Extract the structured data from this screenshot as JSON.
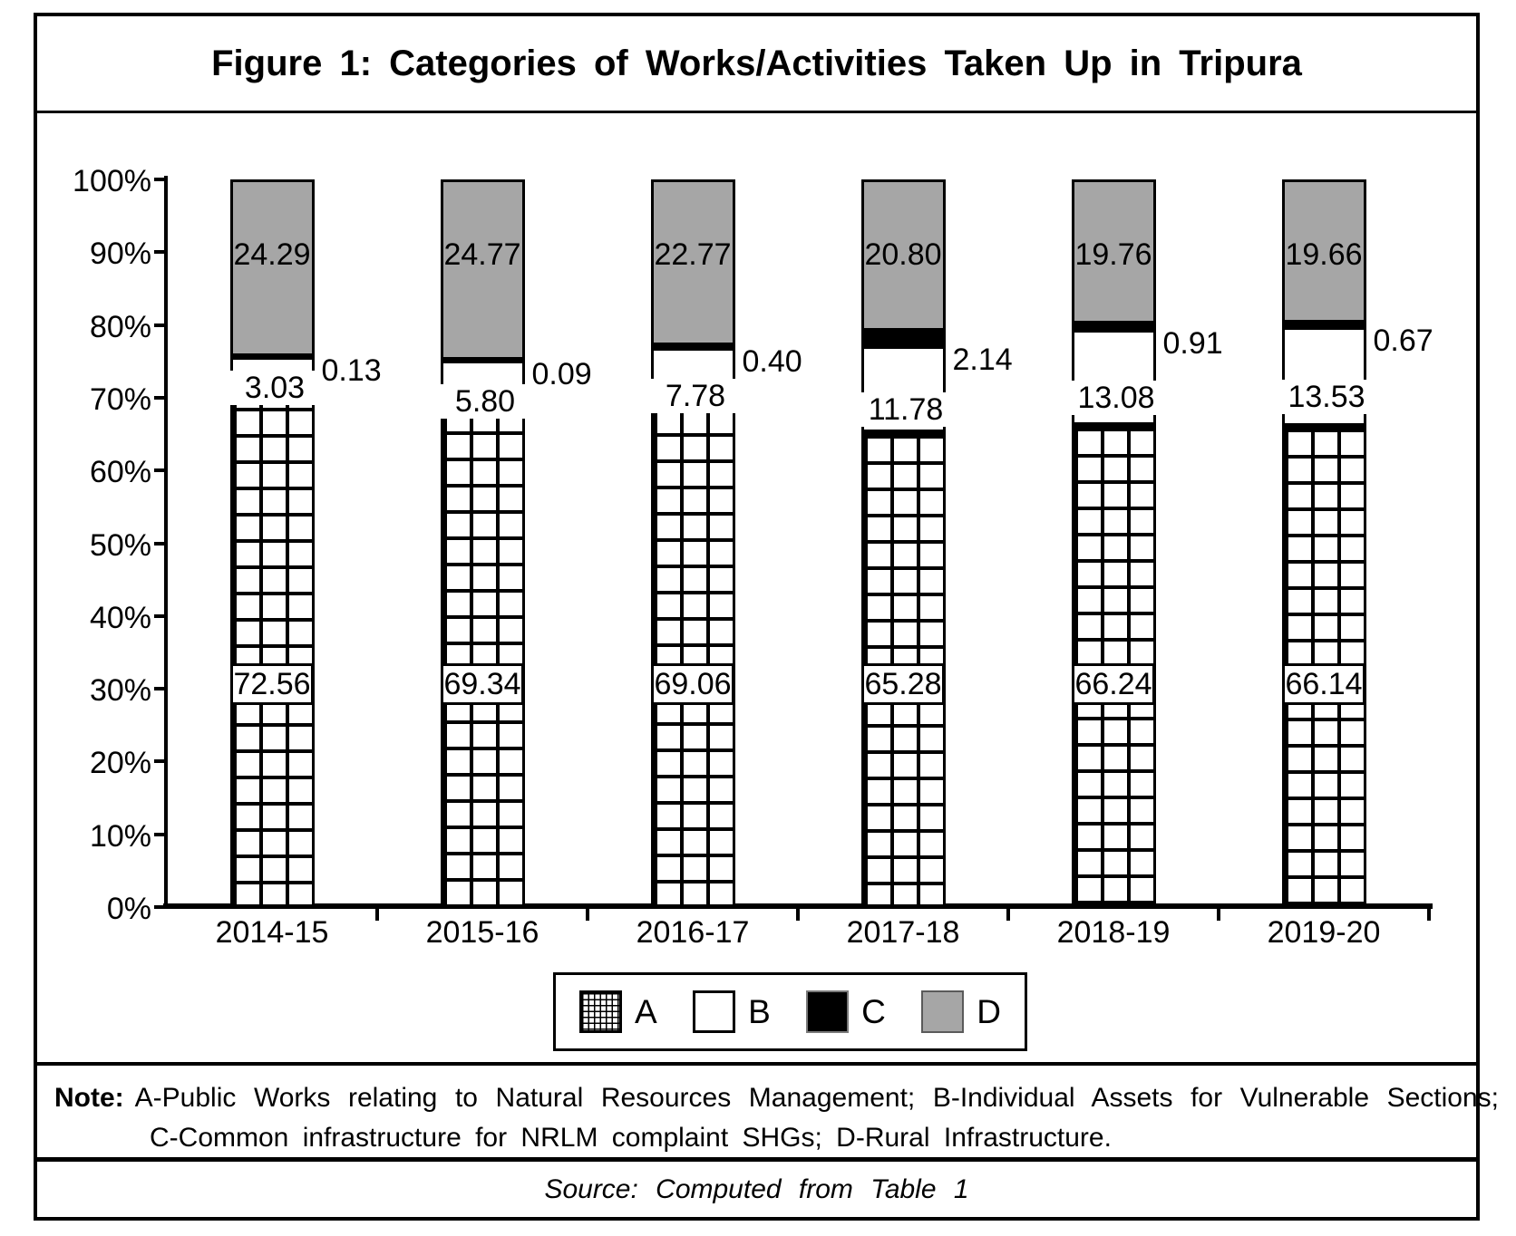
{
  "title": "Figure 1: Categories of Works/Activities Taken Up in Tripura",
  "note": {
    "label": "Note:",
    "text": "A-Public Works relating to Natural Resources Management; B-Individual Assets for Vulnerable Sections; C-Common infrastructure for NRLM complaint SHGs; D-Rural Infrastructure."
  },
  "source": "Source:  Computed  from  Table  1",
  "chart_data": {
    "type": "bar",
    "stacked": true,
    "stack_mode": "percent",
    "title": "Figure 1: Categories of Works/Activities Taken Up in Tripura",
    "categories": [
      "2014-15",
      "2015-16",
      "2016-17",
      "2017-18",
      "2018-19",
      "2019-20"
    ],
    "series": [
      {
        "name": "A",
        "pattern": "crosshatch-grid",
        "color": "#ffffff",
        "values": [
          72.56,
          69.34,
          69.06,
          65.28,
          66.24,
          66.14
        ]
      },
      {
        "name": "B",
        "pattern": "solid",
        "color": "#ffffff",
        "values": [
          3.03,
          5.8,
          7.78,
          11.78,
          13.08,
          13.53
        ]
      },
      {
        "name": "C",
        "pattern": "solid",
        "color": "#000000",
        "values": [
          0.13,
          0.09,
          0.4,
          2.14,
          0.91,
          0.67
        ]
      },
      {
        "name": "D",
        "pattern": "solid",
        "color": "#A6A6A6",
        "values": [
          24.29,
          24.77,
          22.77,
          20.8,
          19.76,
          19.66
        ]
      }
    ],
    "y_ticks": [
      "100%",
      "90%",
      "80%",
      "70%",
      "60%",
      "50%",
      "40%",
      "30%",
      "20%",
      "10%",
      "0%"
    ],
    "ylim": [
      0,
      100
    ],
    "grid": false,
    "legend": [
      "A",
      "B",
      "C",
      "D"
    ],
    "legend_position": "bottom",
    "data_labels_decimals": 2
  }
}
